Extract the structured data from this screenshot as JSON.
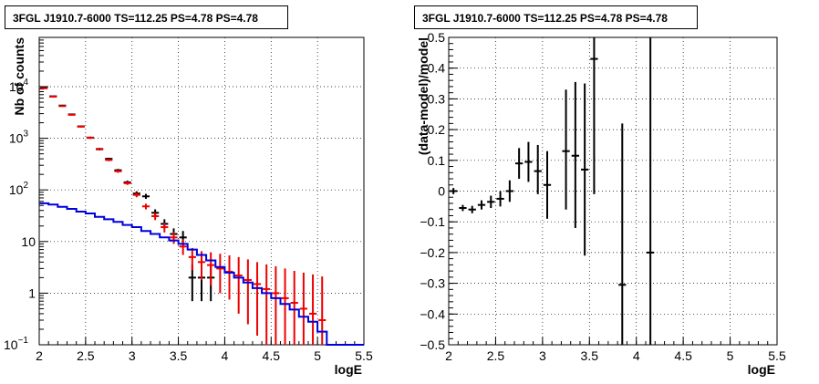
{
  "panels": [
    {
      "title": "3FGL J1910.7-6000 TS=112.25 PS=4.78 PS=4.78"
    },
    {
      "title": "3FGL J1910.7-6000 TS=112.25 PS=4.78 PS=4.78"
    }
  ],
  "colors": {
    "data": "#000000",
    "model_total": "#ee0000",
    "model_bkg": "#0000dd"
  },
  "chart_data": [
    {
      "type": "scatter",
      "title": "3FGL J1910.7-6000 TS=112.25 PS=4.78 PS=4.78",
      "xlabel": "logE",
      "ylabel": "Nb of counts",
      "yscale": "log",
      "xlim": [
        2,
        5.5
      ],
      "ylim": [
        0.1,
        90000
      ],
      "grid": true,
      "x_ticks": [
        "2",
        "2.5",
        "3",
        "3.5",
        "4",
        "4.5",
        "5",
        "5.5"
      ],
      "y_ticks": [
        {
          "value": 0.1,
          "base": "10",
          "exp": "−1"
        },
        {
          "value": 1,
          "base": "1",
          "exp": ""
        },
        {
          "value": 10,
          "base": "10",
          "exp": ""
        },
        {
          "value": 100,
          "base": "10",
          "exp": "2"
        },
        {
          "value": 1000,
          "base": "10",
          "exp": "3"
        },
        {
          "value": 10000,
          "base": "10",
          "exp": "4"
        }
      ],
      "bin_width": 0.1,
      "series": [
        {
          "role": "data",
          "color": "#000000",
          "points": [
            [
              2.05,
              9500,
              9300,
              9700
            ],
            [
              2.15,
              6500,
              6350,
              6650
            ],
            [
              2.25,
              4300,
              4180,
              4420
            ],
            [
              2.35,
              2900,
              2800,
              3000
            ],
            [
              2.45,
              1700,
              1640,
              1760
            ],
            [
              2.55,
              1030,
              985,
              1075
            ],
            [
              2.65,
              620,
              590,
              650
            ],
            [
              2.75,
              400,
              380,
              420
            ],
            [
              2.85,
              240,
              225,
              255
            ],
            [
              2.95,
              140,
              128,
              152
            ],
            [
              3.05,
              85,
              76,
              94
            ],
            [
              3.15,
              75,
              67,
              84
            ],
            [
              3.25,
              36,
              30,
              42
            ],
            [
              3.35,
              22,
              18,
              27
            ],
            [
              3.45,
              14,
              11,
              18
            ],
            [
              3.55,
              12,
              8.5,
              16
            ],
            [
              3.65,
              2,
              0.7,
              3.6
            ],
            [
              3.75,
              2,
              0.7,
              3.6
            ],
            [
              3.85,
              2,
              0.7,
              3.6
            ]
          ]
        },
        {
          "role": "model_total",
          "color": "#ee0000",
          "points": [
            [
              2.05,
              9300,
              9100,
              9500
            ],
            [
              2.15,
              6400,
              6250,
              6550
            ],
            [
              2.25,
              4200,
              4080,
              4320
            ],
            [
              2.35,
              2850,
              2750,
              2950
            ],
            [
              2.45,
              1680,
              1610,
              1750
            ],
            [
              2.55,
              1020,
              970,
              1070
            ],
            [
              2.65,
              610,
              580,
              640
            ],
            [
              2.75,
              380,
              360,
              400
            ],
            [
              2.85,
              230,
              215,
              245
            ],
            [
              2.95,
              135,
              125,
              146
            ],
            [
              3.05,
              80,
              72,
              88
            ],
            [
              3.15,
              48,
              42,
              54
            ],
            [
              3.25,
              31,
              26,
              36
            ],
            [
              3.35,
              19,
              15,
              23
            ],
            [
              3.45,
              12,
              9,
              15
            ],
            [
              3.55,
              8,
              5.5,
              11
            ],
            [
              3.65,
              5,
              2.8,
              7.5
            ],
            [
              3.75,
              4,
              1.8,
              6.5
            ],
            [
              3.85,
              3.5,
              1.4,
              6.2
            ],
            [
              3.95,
              3,
              1,
              5.8
            ],
            [
              4.05,
              2.6,
              0.75,
              5.4
            ],
            [
              4.15,
              2.2,
              0.4,
              5
            ],
            [
              4.25,
              1.8,
              0.25,
              4.5
            ],
            [
              4.35,
              1.5,
              0.15,
              4
            ],
            [
              4.45,
              1.2,
              0.1,
              3.6
            ],
            [
              4.55,
              1,
              0.1,
              3.3
            ],
            [
              4.65,
              0.8,
              0.1,
              3
            ],
            [
              4.75,
              0.65,
              0.1,
              2.7
            ],
            [
              4.85,
              0.5,
              0.1,
              2.5
            ],
            [
              4.95,
              0.4,
              0.1,
              2.3
            ],
            [
              5.05,
              0.3,
              0.1,
              2.1
            ]
          ]
        },
        {
          "role": "model_bkg",
          "color": "#0000dd",
          "step_values": [
            55,
            52,
            47,
            43,
            38,
            35,
            30,
            27,
            24,
            21,
            19,
            16,
            14,
            12,
            10.5,
            9,
            7,
            5.5,
            4.3,
            3.2,
            2.5,
            2,
            1.6,
            1.25,
            1,
            0.8,
            0.62,
            0.48,
            0.35,
            0.28,
            0.18,
            0.1,
            0.1,
            0.1,
            0.1
          ]
        }
      ]
    },
    {
      "type": "scatter",
      "title": "3FGL J1910.7-6000 TS=112.25 PS=4.78 PS=4.78",
      "xlabel": "logE",
      "ylabel": "(data-model)/model",
      "yscale": "linear",
      "xlim": [
        2,
        5.5
      ],
      "ylim": [
        -0.5,
        0.5
      ],
      "grid": true,
      "x_ticks": [
        "2",
        "2.5",
        "3",
        "3.5",
        "4",
        "4.5",
        "5",
        "5.5"
      ],
      "y_ticks": [
        "0.5",
        "0.4",
        "0.3",
        "0.2",
        "0.1",
        "0",
        "−0.1",
        "−0.2",
        "−0.3",
        "−0.4",
        "−0.5"
      ],
      "bin_width": 0.1,
      "series": [
        {
          "role": "residual",
          "color": "#000000",
          "points": [
            [
              2.05,
              0.0,
              -0.01,
              0.01
            ],
            [
              2.15,
              -0.055,
              -0.065,
              -0.045
            ],
            [
              2.25,
              -0.06,
              -0.072,
              -0.048
            ],
            [
              2.35,
              -0.045,
              -0.06,
              -0.03
            ],
            [
              2.45,
              -0.035,
              -0.055,
              -0.015
            ],
            [
              2.55,
              -0.025,
              -0.05,
              0.0
            ],
            [
              2.65,
              0.0,
              -0.035,
              0.035
            ],
            [
              2.75,
              0.09,
              0.04,
              0.14
            ],
            [
              2.85,
              0.095,
              0.03,
              0.16
            ],
            [
              2.95,
              0.065,
              -0.01,
              0.15
            ],
            [
              3.05,
              0.02,
              -0.09,
              0.13
            ],
            [
              3.25,
              0.13,
              -0.06,
              0.33
            ],
            [
              3.35,
              0.115,
              -0.12,
              0.355
            ],
            [
              3.45,
              0.07,
              -0.21,
              0.35
            ],
            [
              3.55,
              0.43,
              -0.01,
              0.5
            ],
            [
              3.85,
              -0.305,
              -0.5,
              0.22
            ],
            [
              4.15,
              -0.2,
              -0.5,
              0.5
            ]
          ]
        }
      ]
    }
  ]
}
